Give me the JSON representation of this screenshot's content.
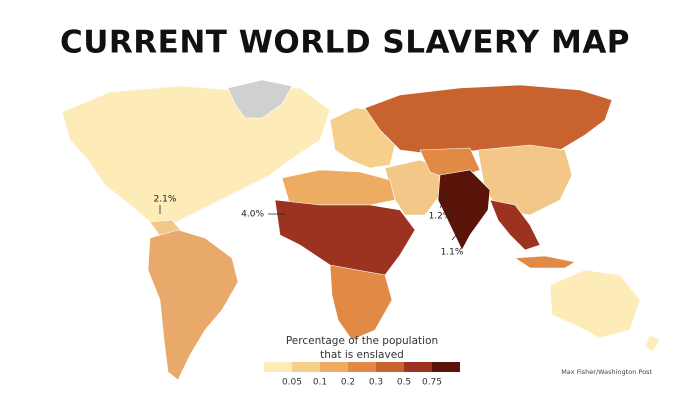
{
  "title": "CURRENT WORLD SLAVERY MAP",
  "annotations": [
    "2.1%",
    "4.0%",
    "1.2%",
    "1.1%"
  ],
  "legend": {
    "title_lines": [
      "Percentage of the population",
      "that is enslaved"
    ],
    "colors": [
      "#fdebb8",
      "#f6cf8a",
      "#eeac62",
      "#e08a45",
      "#c8622f",
      "#9c3320",
      "#5a1308"
    ],
    "ticks": [
      0.05,
      0.1,
      0.2,
      0.3,
      0.5,
      0.75
    ]
  },
  "credit": "Max Fisher/Washington Post"
}
